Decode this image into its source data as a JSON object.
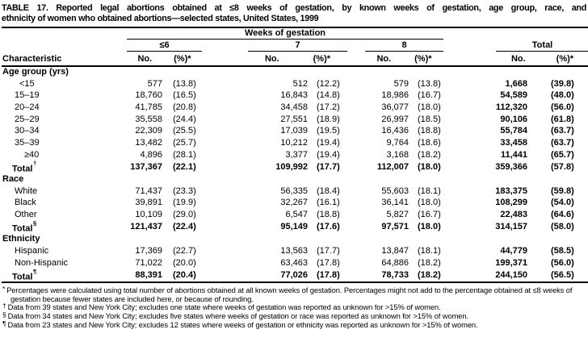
{
  "title": {
    "line1": "TABLE 17. Reported legal abortions obtained at ≤8 weeks of gestation, by known weeks of gestation, age group, race, and",
    "line2": "ethnicity of women who obtained abortions—selected states, United States, 1999"
  },
  "header": {
    "weeks_span": "Weeks of gestation",
    "characteristic": "Characteristic",
    "col_groups": [
      {
        "label": "≤6",
        "no": "No.",
        "pct": "(%)*"
      },
      {
        "label": "7",
        "no": "No.",
        "pct": "(%)*"
      },
      {
        "label": "8",
        "no": "No.",
        "pct": "(%)*"
      },
      {
        "label": "Total",
        "no": "No.",
        "pct": "(%)*"
      }
    ]
  },
  "table": {
    "sections": [
      {
        "header": "Age group (yrs)",
        "rows": [
          {
            "label": "<15",
            "values": [
              "577",
              "(13.8)",
              "512",
              "(12.2)",
              "579",
              "(13.8)",
              "1,668",
              "(39.8)"
            ]
          },
          {
            "label": "15–19",
            "values": [
              "18,760",
              "(16.5)",
              "16,843",
              "(14.8)",
              "18,986",
              "(16.7)",
              "54,589",
              "(48.0)"
            ]
          },
          {
            "label": "20–24",
            "values": [
              "41,785",
              "(20.8)",
              "34,458",
              "(17.2)",
              "36,077",
              "(18.0)",
              "112,320",
              "(56.0)"
            ]
          },
          {
            "label": "25–29",
            "values": [
              "35,558",
              "(24.4)",
              "27,551",
              "(18.9)",
              "26,997",
              "(18.5)",
              "90,106",
              "(61.8)"
            ]
          },
          {
            "label": "30–34",
            "values": [
              "22,309",
              "(25.5)",
              "17,039",
              "(19.5)",
              "16,436",
              "(18.8)",
              "55,784",
              "(63.7)"
            ]
          },
          {
            "label": "35–39",
            "values": [
              "13,482",
              "(25.7)",
              "10,212",
              "(19.4)",
              "9,764",
              "(18.6)",
              "33,458",
              "(63.7)"
            ]
          },
          {
            "label": "≥40",
            "values": [
              "4,896",
              "(28.1)",
              "3,377",
              "(19.4)",
              "3,168",
              "(18.2)",
              "11,441",
              "(65.7)"
            ]
          },
          {
            "label": "Total",
            "sup": "†",
            "values": [
              "137,367",
              "(22.1)",
              "109,992",
              "(17.7)",
              "112,007",
              "(18.0)",
              "359,366",
              "(57.8)"
            ]
          }
        ]
      },
      {
        "header": "Race",
        "rows": [
          {
            "label": "White",
            "values": [
              "71,437",
              "(23.3)",
              "56,335",
              "(18.4)",
              "55,603",
              "(18.1)",
              "183,375",
              "(59.8)"
            ]
          },
          {
            "label": "Black",
            "values": [
              "39,891",
              "(19.9)",
              "32,267",
              "(16.1)",
              "36,141",
              "(18.0)",
              "108,299",
              "(54.0)"
            ]
          },
          {
            "label": "Other",
            "values": [
              "10,109",
              "(29.0)",
              "6,547",
              "(18.8)",
              "5,827",
              "(16.7)",
              "22,483",
              "(64.6)"
            ]
          },
          {
            "label": "Total",
            "sup": "§",
            "values": [
              "121,437",
              "(22.4)",
              "95,149",
              "(17.6)",
              "97,571",
              "(18.0)",
              "314,157",
              "(58.0)"
            ]
          }
        ]
      },
      {
        "header": "Ethnicity",
        "rows": [
          {
            "label": "Hispanic",
            "values": [
              "17,369",
              "(22.7)",
              "13,563",
              "(17.7)",
              "13,847",
              "(18.1)",
              "44,779",
              "(58.5)"
            ]
          },
          {
            "label": "Non-Hispanic",
            "values": [
              "71,022",
              "(20.0)",
              "63,463",
              "(17.8)",
              "64,886",
              "(18.2)",
              "199,371",
              "(56.0)"
            ]
          },
          {
            "label": "Total",
            "sup": "¶",
            "values": [
              "88,391",
              "(20.4)",
              "77,026",
              "(17.8)",
              "78,733",
              "(18.2)",
              "244,150",
              "(56.5)"
            ]
          }
        ]
      }
    ]
  },
  "footnotes": [
    {
      "marker": "*",
      "text": "Percentages were calculated using total number of abortions obtained at all known weeks of gestation. Percentages might not add to the percentage obtained at ≤8 weeks of gestation because fewer states are included here, or because of rounding."
    },
    {
      "marker": "†",
      "text": "Data from 39 states and New York City; excludes one state where weeks of gestation was reported as unknown for >15% of women."
    },
    {
      "marker": "§",
      "text": "Data from 34 states and New York City; excludes five states where weeks of gestation or race was reported as unknown for >15% of women."
    },
    {
      "marker": "¶",
      "text": "Data from 23 states and New York City; excludes 12 states where weeks of gestation or ethnicity was reported as unknown for >15% of women."
    }
  ]
}
